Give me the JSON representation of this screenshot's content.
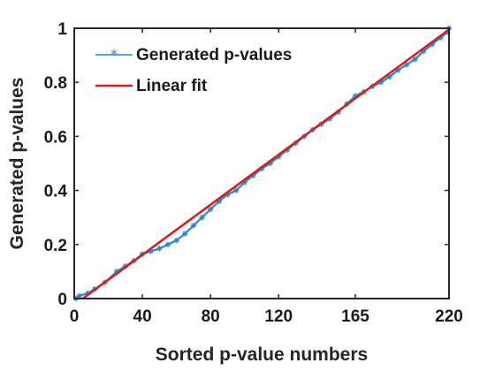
{
  "chart_data": {
    "type": "line",
    "xlabel": "Sorted p-value numbers",
    "ylabel": "Generated p-values",
    "xlim": [
      0,
      220
    ],
    "ylim": [
      0,
      1
    ],
    "xticks": [
      0,
      40,
      80,
      120,
      165,
      220
    ],
    "xtick_labels": [
      "0",
      "40",
      "80",
      "120",
      "165",
      "220"
    ],
    "yticks": [
      0,
      0.2,
      0.4,
      0.6,
      0.8,
      1
    ],
    "ytick_labels": [
      "0",
      "0.2",
      "0.4",
      "0.6",
      "0.8",
      "1"
    ],
    "grid": false,
    "legend_position": "top-left",
    "series": [
      {
        "name": "Generated p-values",
        "style": "line-with-star-markers",
        "color": "#2e86c8",
        "points": [
          [
            1,
            0.0
          ],
          [
            3,
            0.01
          ],
          [
            8,
            0.02
          ],
          [
            12,
            0.035
          ],
          [
            18,
            0.06
          ],
          [
            25,
            0.1
          ],
          [
            30,
            0.12
          ],
          [
            35,
            0.14
          ],
          [
            40,
            0.165
          ],
          [
            45,
            0.175
          ],
          [
            50,
            0.185
          ],
          [
            55,
            0.2
          ],
          [
            60,
            0.215
          ],
          [
            65,
            0.24
          ],
          [
            70,
            0.27
          ],
          [
            75,
            0.3
          ],
          [
            80,
            0.33
          ],
          [
            85,
            0.36
          ],
          [
            90,
            0.385
          ],
          [
            95,
            0.4
          ],
          [
            100,
            0.43
          ],
          [
            105,
            0.455
          ],
          [
            110,
            0.48
          ],
          [
            115,
            0.5
          ],
          [
            120,
            0.525
          ],
          [
            125,
            0.55
          ],
          [
            130,
            0.575
          ],
          [
            135,
            0.6
          ],
          [
            140,
            0.625
          ],
          [
            145,
            0.645
          ],
          [
            150,
            0.665
          ],
          [
            155,
            0.69
          ],
          [
            160,
            0.72
          ],
          [
            165,
            0.75
          ],
          [
            170,
            0.765
          ],
          [
            175,
            0.785
          ],
          [
            180,
            0.8
          ],
          [
            185,
            0.82
          ],
          [
            190,
            0.845
          ],
          [
            195,
            0.865
          ],
          [
            200,
            0.885
          ],
          [
            205,
            0.915
          ],
          [
            210,
            0.94
          ],
          [
            215,
            0.965
          ],
          [
            219,
            0.985
          ],
          [
            220,
            1.0
          ]
        ]
      },
      {
        "name": "Linear fit",
        "style": "line",
        "color": "#d62020",
        "points": [
          [
            5,
            0.0
          ],
          [
            220,
            0.995
          ]
        ]
      }
    ]
  }
}
